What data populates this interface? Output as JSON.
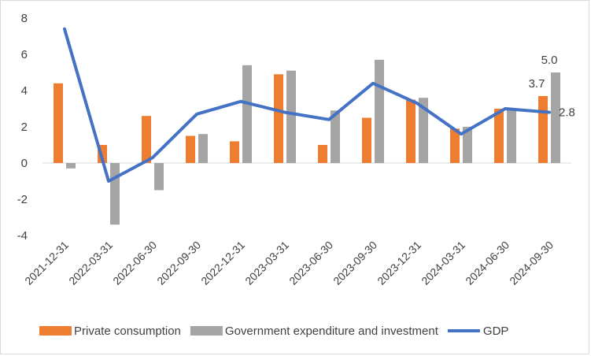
{
  "chart_data": {
    "type": "bar",
    "title": "",
    "xlabel": "",
    "ylabel": "",
    "ylim": [
      -4,
      8
    ],
    "yticks": [
      "-4",
      "-2",
      "0",
      "2",
      "4",
      "6",
      "8"
    ],
    "categories": [
      "2021-12-31",
      "2022-03-31",
      "2022-06-30",
      "2022-09-30",
      "2022-12-31",
      "2023-03-31",
      "2023-06-30",
      "2023-09-30",
      "2023-12-31",
      "2024-03-31",
      "2024-06-30",
      "2024-09-30"
    ],
    "series": [
      {
        "name": "Private consumption",
        "type": "bar",
        "color": "#ED7D31",
        "values": [
          4.4,
          1.0,
          2.6,
          1.5,
          1.2,
          4.9,
          1.0,
          2.5,
          3.5,
          1.9,
          3.0,
          3.7
        ]
      },
      {
        "name": "Government expenditure and investment",
        "type": "bar",
        "color": "#A5A5A5",
        "values": [
          -0.3,
          -3.4,
          -1.5,
          1.6,
          5.4,
          5.1,
          2.9,
          5.7,
          3.6,
          2.0,
          3.0,
          5.0
        ]
      },
      {
        "name": "GDP",
        "type": "line",
        "color": "#4472C4",
        "values": [
          7.4,
          -1.0,
          0.3,
          2.7,
          3.4,
          2.8,
          2.4,
          4.4,
          3.3,
          1.6,
          3.0,
          2.8
        ]
      }
    ],
    "data_labels": [
      {
        "series": "Private consumption",
        "category": "2024-09-30",
        "text": "3.7"
      },
      {
        "series": "Government expenditure and investment",
        "category": "2024-09-30",
        "text": "5.0"
      },
      {
        "series": "GDP",
        "category": "2024-09-30",
        "text": "2.8"
      }
    ],
    "grid": false,
    "legend_position": "bottom"
  }
}
